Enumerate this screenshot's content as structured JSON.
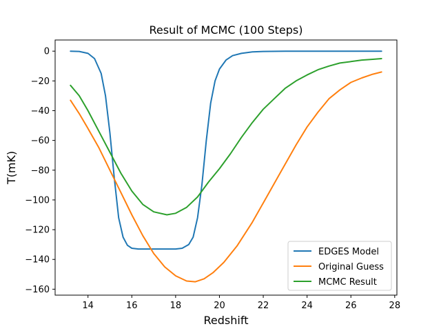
{
  "chart_data": {
    "type": "line",
    "title": "Result of MCMC (100 Steps)",
    "xlabel": "Redshift",
    "ylabel": "T(mK)",
    "xlim": [
      12.5,
      28.1
    ],
    "ylim": [
      -164,
      7.5
    ],
    "xticks": [
      14,
      16,
      18,
      20,
      22,
      24,
      26,
      28
    ],
    "yticks": [
      0,
      -20,
      -40,
      -60,
      -80,
      -100,
      -120,
      -140,
      -160
    ],
    "grid": false,
    "legend_position": "lower-right",
    "series": [
      {
        "name": "EDGES Model",
        "color": "#1f77b4",
        "x": [
          13.2,
          13.6,
          14.0,
          14.3,
          14.6,
          14.8,
          15.0,
          15.2,
          15.4,
          15.6,
          15.8,
          16.0,
          16.3,
          16.6,
          17.0,
          17.5,
          18.0,
          18.3,
          18.6,
          18.8,
          19.0,
          19.2,
          19.4,
          19.6,
          19.8,
          20.0,
          20.3,
          20.6,
          21.0,
          21.5,
          22.0,
          23.0,
          24.0,
          25.0,
          26.0,
          27.4
        ],
        "y": [
          0,
          -0.2,
          -1.5,
          -5,
          -15,
          -30,
          -55,
          -85,
          -112,
          -125,
          -130.5,
          -132.5,
          -133,
          -133,
          -133,
          -133,
          -133,
          -132.5,
          -130,
          -125,
          -112,
          -90,
          -60,
          -35,
          -20,
          -12,
          -6,
          -3,
          -1.5,
          -0.5,
          -0.2,
          0,
          0,
          0,
          0,
          0
        ]
      },
      {
        "name": "Original Guess",
        "color": "#ff7f0e",
        "x": [
          13.2,
          13.6,
          14.0,
          14.5,
          15.0,
          15.5,
          16.0,
          16.5,
          17.0,
          17.5,
          18.0,
          18.5,
          18.9,
          19.3,
          19.7,
          20.2,
          20.8,
          21.5,
          22.0,
          22.5,
          23.0,
          23.5,
          24.0,
          24.5,
          25.0,
          25.5,
          26.0,
          26.5,
          27.0,
          27.4
        ],
        "y": [
          -33,
          -42,
          -52,
          -65,
          -80,
          -95,
          -110,
          -124,
          -136,
          -145,
          -151,
          -154.5,
          -155,
          -153,
          -149,
          -142,
          -131,
          -115,
          -102,
          -89,
          -76,
          -63,
          -51,
          -41,
          -32,
          -26,
          -21,
          -18,
          -15.5,
          -14
        ]
      },
      {
        "name": "MCMC Result",
        "color": "#2ca02c",
        "x": [
          13.2,
          13.6,
          14.0,
          14.5,
          15.0,
          15.5,
          16.0,
          16.5,
          17.0,
          17.6,
          18.0,
          18.5,
          19.0,
          19.5,
          20.0,
          20.5,
          21.0,
          21.5,
          22.0,
          22.5,
          23.0,
          23.5,
          24.0,
          24.5,
          25.0,
          25.5,
          26.0,
          26.5,
          27.0,
          27.4
        ],
        "y": [
          -23,
          -30,
          -40,
          -54,
          -68,
          -82,
          -94,
          -103,
          -108,
          -110,
          -109,
          -105,
          -98,
          -88,
          -79,
          -69,
          -58,
          -48,
          -39,
          -32,
          -25,
          -20,
          -16,
          -12.5,
          -10,
          -8,
          -7,
          -6,
          -5.5,
          -5
        ]
      }
    ]
  }
}
